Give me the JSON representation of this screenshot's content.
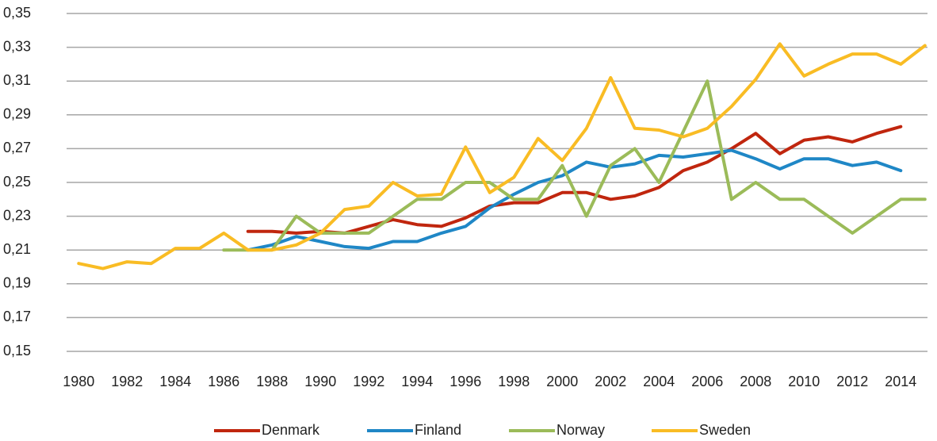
{
  "chart_data": {
    "type": "line",
    "categories": [
      1980,
      null,
      1982,
      null,
      1984,
      null,
      1986,
      null,
      1988,
      null,
      1990,
      null,
      1992,
      null,
      1994,
      null,
      1996,
      null,
      1998,
      null,
      2000,
      null,
      2002,
      null,
      2004,
      null,
      2006,
      null,
      2008,
      null,
      2010,
      null,
      2012,
      null,
      2014,
      null
    ],
    "series": [
      {
        "name": "Denmark",
        "color": "#c0260e",
        "values": [
          null,
          null,
          null,
          null,
          null,
          null,
          null,
          0.221,
          0.221,
          0.22,
          0.221,
          0.22,
          0.224,
          0.228,
          0.225,
          0.224,
          0.229,
          0.236,
          0.238,
          0.238,
          0.244,
          0.244,
          0.24,
          0.242,
          0.247,
          0.257,
          0.262,
          0.27,
          0.279,
          0.267,
          0.275,
          0.277,
          0.274,
          0.279,
          0.283,
          null
        ]
      },
      {
        "name": "Finland",
        "color": "#1f87c6",
        "values": [
          null,
          null,
          null,
          null,
          null,
          null,
          null,
          0.21,
          0.213,
          0.218,
          0.215,
          0.212,
          0.211,
          0.215,
          0.215,
          0.22,
          0.224,
          0.235,
          0.243,
          0.25,
          0.254,
          0.262,
          0.259,
          0.261,
          0.266,
          0.265,
          0.267,
          0.269,
          0.264,
          0.258,
          0.264,
          0.264,
          0.26,
          0.262,
          0.257,
          null
        ]
      },
      {
        "name": "Norway",
        "color": "#9bbb59",
        "values": [
          null,
          null,
          null,
          null,
          null,
          null,
          0.21,
          0.21,
          0.21,
          0.23,
          0.22,
          0.22,
          0.22,
          0.23,
          0.24,
          0.24,
          0.25,
          0.25,
          0.24,
          0.24,
          0.26,
          0.23,
          0.26,
          0.27,
          0.25,
          0.28,
          0.31,
          0.24,
          0.25,
          0.24,
          0.24,
          0.23,
          0.22,
          0.23,
          0.24,
          0.24
        ]
      },
      {
        "name": "Sweden",
        "color": "#f9bc24",
        "values": [
          0.202,
          0.199,
          0.203,
          0.202,
          0.211,
          0.211,
          0.22,
          0.21,
          0.21,
          0.213,
          0.22,
          0.234,
          0.236,
          0.25,
          0.242,
          0.243,
          0.271,
          0.244,
          0.253,
          0.276,
          0.263,
          0.282,
          0.312,
          0.282,
          0.281,
          0.277,
          0.282,
          0.295,
          0.311,
          0.332,
          0.313,
          0.32,
          0.326,
          0.326,
          0.32,
          0.331
        ]
      }
    ],
    "ylim": [
      0.15,
      0.35
    ],
    "yticks": [
      {
        "value": 0.15,
        "label": "0,15"
      },
      {
        "value": 0.17,
        "label": "0,17"
      },
      {
        "value": 0.19,
        "label": "0,19"
      },
      {
        "value": 0.21,
        "label": "0,21"
      },
      {
        "value": 0.23,
        "label": "0,23"
      },
      {
        "value": 0.25,
        "label": "0,25"
      },
      {
        "value": 0.27,
        "label": "0,27"
      },
      {
        "value": 0.29,
        "label": "0,29"
      },
      {
        "value": 0.31,
        "label": "0,31"
      },
      {
        "value": 0.33,
        "label": "0,33"
      },
      {
        "value": 0.35,
        "label": "0,35"
      }
    ],
    "grid": true,
    "legend": "bottom"
  }
}
